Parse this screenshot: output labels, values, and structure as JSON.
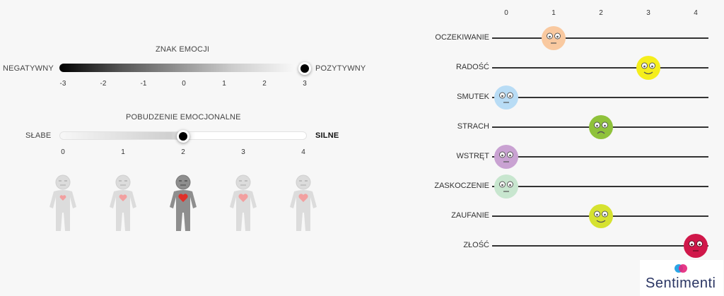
{
  "valence": {
    "title": "ZNAK EMOCJI",
    "left_label": "NEGATYWNY",
    "right_label": "POZYTYWNY",
    "ticks": [
      "-3",
      "-2",
      "-1",
      "0",
      "1",
      "2",
      "3"
    ],
    "value": 3
  },
  "arousal": {
    "title": "POBUDZENIE EMOCJONALNE",
    "left_label": "SŁABE",
    "right_label": "SILNE",
    "ticks": [
      "0",
      "1",
      "2",
      "3",
      "4"
    ],
    "value": 2
  },
  "emotions_axis": [
    "0",
    "1",
    "2",
    "3",
    "4"
  ],
  "emotions": [
    {
      "label": "OCZEKIWANIE",
      "value": 1,
      "color": "#f9c9a0"
    },
    {
      "label": "RADOŚĆ",
      "value": 3,
      "color": "#f5ee1c"
    },
    {
      "label": "SMUTEK",
      "value": 0,
      "color": "#b8dcf5"
    },
    {
      "label": "STRACH",
      "value": 2,
      "color": "#8fc23b"
    },
    {
      "label": "WSTRĘT",
      "value": 0,
      "color": "#c9a2d2"
    },
    {
      "label": "ZASKOCZENIE",
      "value": 0,
      "color": "#c8e6cf"
    },
    {
      "label": "ZAUFANIE",
      "value": 2,
      "color": "#d6e230"
    },
    {
      "label": "ZŁOŚĆ",
      "value": 4,
      "color": "#d0184a"
    }
  ],
  "brand": "Sentimenti",
  "icons": {
    "logo": "sentimenti-logo-icon",
    "figure": "person-heart-icon",
    "knob": "slider-knob-icon"
  }
}
